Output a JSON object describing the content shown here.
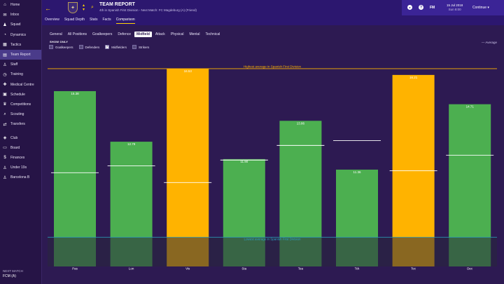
{
  "sidebar": {
    "items": [
      {
        "label": "Home",
        "icon": "home-icon",
        "glyph": "⌂"
      },
      {
        "label": "Inbox",
        "icon": "inbox-icon",
        "glyph": "✉"
      },
      {
        "label": "Squad",
        "icon": "squad-icon",
        "glyph": "♟"
      },
      {
        "label": "Dynamics",
        "icon": "dynamics-icon",
        "glyph": "◔"
      },
      {
        "label": "Tactics",
        "icon": "tactics-icon",
        "glyph": "▦"
      },
      {
        "label": "Team Report",
        "icon": "report-icon",
        "glyph": "▤"
      },
      {
        "label": "Staff",
        "icon": "staff-icon",
        "glyph": "♙"
      },
      {
        "label": "Training",
        "icon": "training-icon",
        "glyph": "◷"
      },
      {
        "label": "Medical Centre",
        "icon": "medical-icon",
        "glyph": "✚"
      },
      {
        "label": "Schedule",
        "icon": "schedule-icon",
        "glyph": "▣"
      },
      {
        "label": "Competitions",
        "icon": "trophy-icon",
        "glyph": "♛"
      },
      {
        "label": "Scouting",
        "icon": "scouting-icon",
        "glyph": "⌕"
      },
      {
        "label": "Transfers",
        "icon": "transfers-icon",
        "glyph": "⇄"
      },
      {
        "label": "Club",
        "icon": "club-icon",
        "glyph": "◈"
      },
      {
        "label": "Board",
        "icon": "board-icon",
        "glyph": "▭"
      },
      {
        "label": "Finances",
        "icon": "finances-icon",
        "glyph": "$"
      },
      {
        "label": "Under 19s",
        "icon": "u19-icon",
        "glyph": "♙"
      },
      {
        "label": "Barcelona B",
        "icon": "reserve-icon",
        "glyph": "♙"
      }
    ],
    "next_match_label": "NEXT MATCH",
    "next_match_value": "FCM (A)"
  },
  "header": {
    "title": "TEAM REPORT",
    "subtitle": "4th in Spanish First Division - Next Match: FC Magdeburg (A) (Friend)",
    "tabs": [
      "Overview",
      "Squad Depth",
      "Stats",
      "Facts",
      "Comparison"
    ],
    "active_tab": "Comparison"
  },
  "top_right": {
    "fm_label": "FM",
    "date": "15 Jul 2018",
    "time": "Sun 8:00",
    "continue_label": "Continue",
    "continue_arrow": "▾"
  },
  "sub_tabs": {
    "items": [
      "General",
      "All Positions",
      "Goalkeepers",
      "Defence",
      "Midfield",
      "Attack",
      "Physical",
      "Mental",
      "Technical"
    ],
    "active": "Midfield"
  },
  "show_only": {
    "label": "SHOW ONLY",
    "filters": [
      {
        "label": "Goalkeepers",
        "checked": false
      },
      {
        "label": "Defenders",
        "checked": false
      },
      {
        "label": "Midfielders",
        "checked": true
      },
      {
        "label": "Strikers",
        "checked": false
      }
    ]
  },
  "legend": {
    "average_label": "— Average"
  },
  "colors": {
    "green": "#4caf50",
    "orange": "#ffb300",
    "average_line": "#ffffff",
    "highest_line": "#ffb300",
    "lowest_line": "#2aa6c8"
  },
  "chart_data": {
    "type": "bar",
    "title": "",
    "categories": [
      "Pas",
      "Lon",
      "Vis",
      "Sta",
      "Tea",
      "Tck",
      "Tec",
      "Dec"
    ],
    "values": [
      15.38,
      12.79,
      16.53,
      11.9,
      13.86,
      11.36,
      16.21,
      14.71
    ],
    "averages": [
      11.2,
      11.55,
      10.7,
      11.85,
      12.6,
      12.85,
      11.3,
      12.1
    ],
    "is_highest": [
      false,
      false,
      true,
      false,
      false,
      false,
      true,
      false
    ],
    "value_labels": [
      "15.38",
      "12.79",
      "16.53",
      "11.90",
      "13.86",
      "11.36",
      "16.21",
      "14.71"
    ],
    "highest_label": "Highest average in Spanish First Division",
    "lowest_label": "Lowest average in Spanish First Division",
    "highest_value": 16.53,
    "lowest_value": 7.9,
    "ylim": [
      6.4,
      16.6
    ],
    "xlabel": "",
    "ylabel": ""
  }
}
